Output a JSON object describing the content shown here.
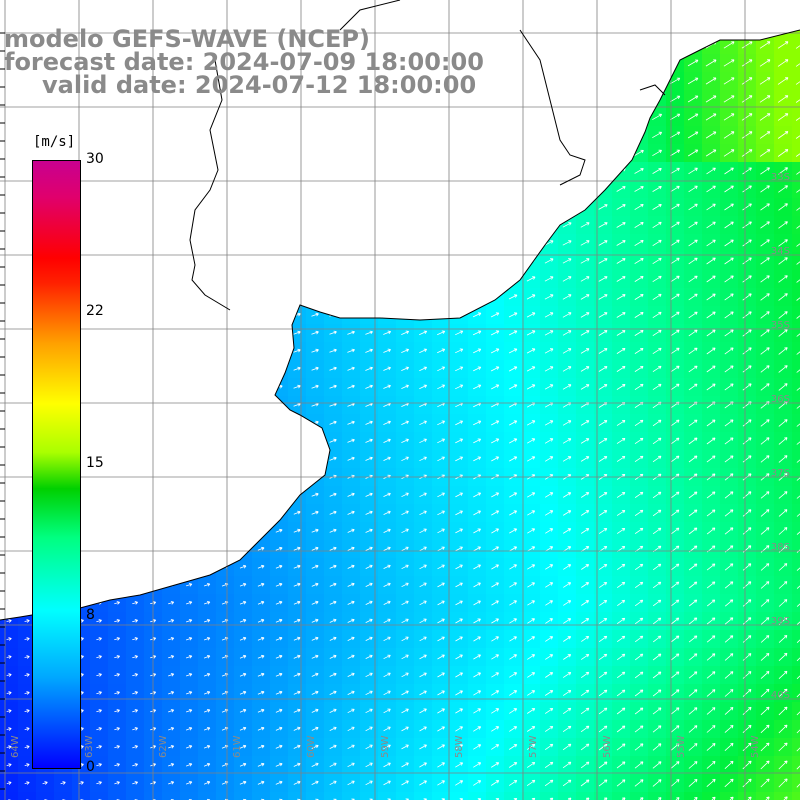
{
  "title": {
    "line1": "modelo GEFS-WAVE (NCEP)",
    "line2": "forecast date: 2024-07-09 18:00:00",
    "line3": "valid date: 2024-07-12 18:00:00"
  },
  "colorbar": {
    "unit": "[m/s]",
    "min": 0,
    "max": 30,
    "ticks": [
      "30",
      "22",
      "15",
      "8",
      "0"
    ]
  },
  "map": {
    "variable": "wind speed with wind direction arrows",
    "land_color": "#ffffff",
    "coast_color": "#000000",
    "grid_color": "#808080",
    "arrow_color": "#ffffff",
    "lat_labels": [
      "33S",
      "34S",
      "35S",
      "36S",
      "37S",
      "38S",
      "39S",
      "40S"
    ],
    "lon_labels": [
      "64W",
      "63W",
      "62W",
      "61W",
      "60W",
      "59W",
      "58W",
      "57W",
      "56W",
      "55W",
      "54W"
    ]
  }
}
